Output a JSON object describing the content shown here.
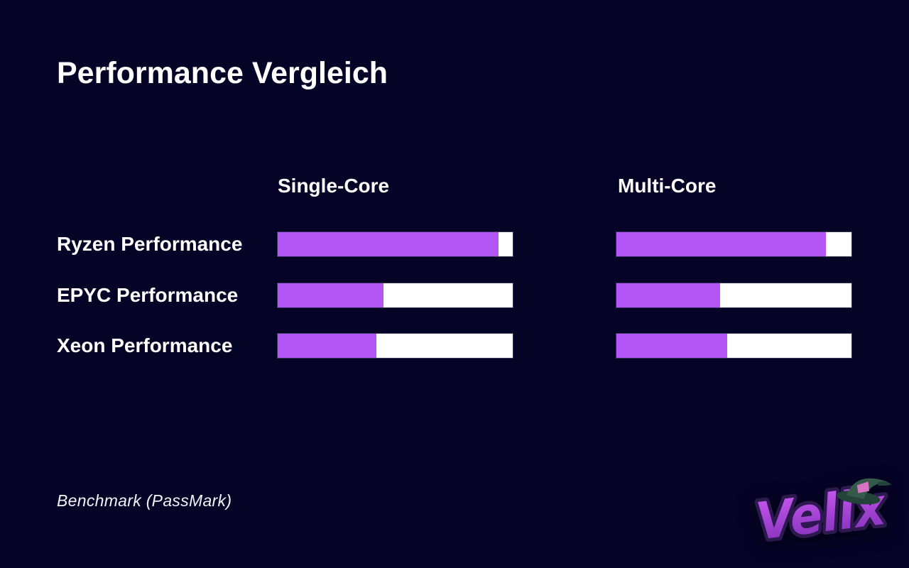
{
  "slide": {
    "title": "Performance Vergleich",
    "source_note": "Benchmark (PassMark)",
    "logo_text": "Velix"
  },
  "colors": {
    "background": "#050427",
    "text": "#ffffff",
    "bar_fill": "#b455f5",
    "bar_track": "#ffffff",
    "logo_purple_light": "#cf5af5",
    "logo_purple_dark": "#7c2fb5",
    "logo_outline": "#2d1850",
    "hat_green_dark": "#24433a",
    "hat_green_light": "#35594b",
    "hat_band_pink": "#d873c2"
  },
  "chart_data": {
    "type": "bar",
    "orientation": "horizontal",
    "title": "Performance Vergleich",
    "categories": [
      "Ryzen Performance",
      "EPYC Performance",
      "Xeon Performance"
    ],
    "series": [
      {
        "name": "Single-Core",
        "values": [
          94,
          45,
          42
        ]
      },
      {
        "name": "Multi-Core",
        "values": [
          89,
          44,
          47
        ]
      }
    ],
    "value_unit": "percent of full bar track",
    "xlim": [
      0,
      100
    ],
    "grid": false,
    "legend_position": "column headers above bars",
    "source_note": "Benchmark (PassMark)"
  }
}
